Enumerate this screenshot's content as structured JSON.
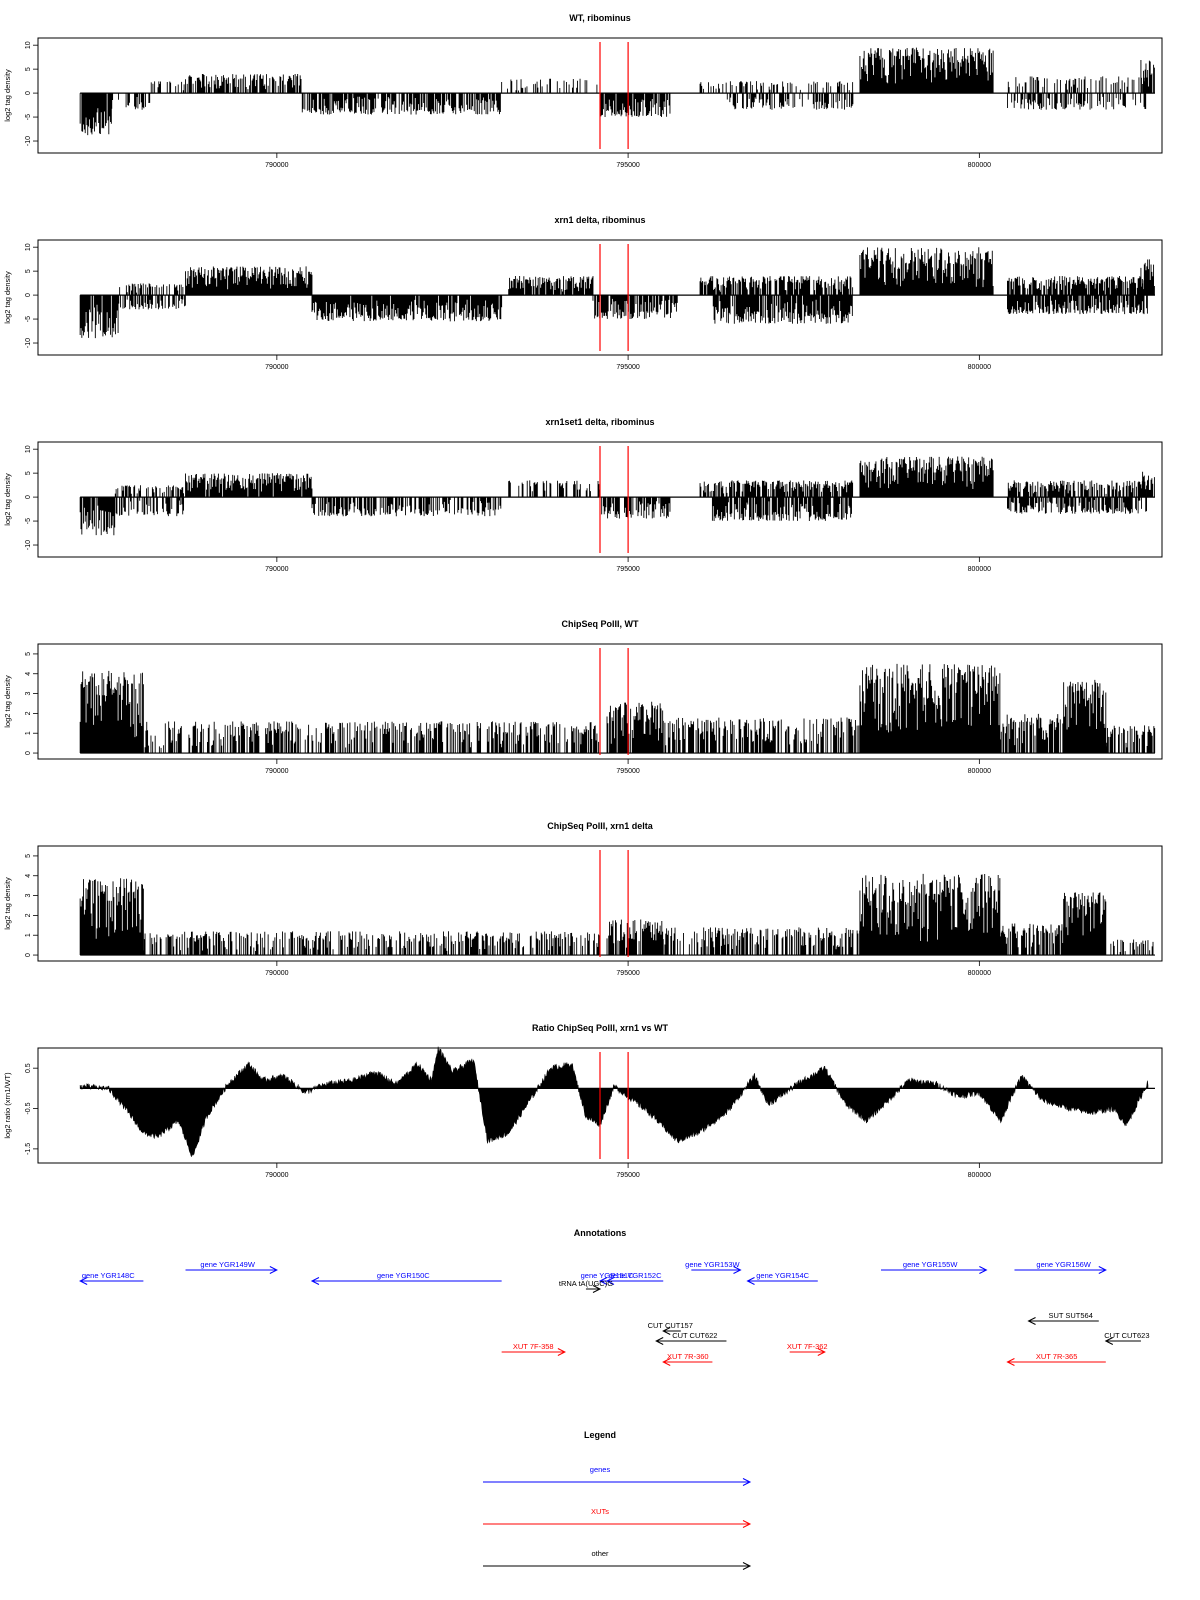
{
  "chart_data": [
    {
      "type": "bar",
      "title": "WT, ribominus",
      "ylabel": "log2 tag density",
      "xticks": [
        790000,
        795000,
        800000
      ],
      "xlim": [
        786600,
        802600
      ],
      "yticks": [
        10,
        5,
        0,
        -5,
        -10
      ],
      "ylim": [
        -12.5,
        11.5
      ],
      "markers": [
        794600,
        795000
      ],
      "segments": [
        {
          "x": [
            787200,
            787650
          ],
          "sign": -1,
          "amp": 9,
          "density": 0.95
        },
        {
          "x": [
            787650,
            788200
          ],
          "sign": -1,
          "amp": 3.5,
          "density": 0.45
        },
        {
          "x": [
            788200,
            788700
          ],
          "sign": 1,
          "amp": 2.5,
          "density": 0.4
        },
        {
          "x": [
            788700,
            790350
          ],
          "sign": 1,
          "amp": 4,
          "density": 0.75
        },
        {
          "x": [
            790350,
            793200
          ],
          "sign": -1,
          "amp": 4.5,
          "density": 0.75
        },
        {
          "x": [
            793200,
            794600
          ],
          "sign": 1,
          "amp": 3,
          "density": 0.3
        },
        {
          "x": [
            794600,
            795600
          ],
          "sign": -1,
          "amp": 5,
          "density": 0.85
        },
        {
          "x": [
            796000,
            798200
          ],
          "sign": 1,
          "amp": 2.5,
          "density": 0.3
        },
        {
          "x": [
            796400,
            798200
          ],
          "sign": -1,
          "amp": 3.5,
          "density": 0.5
        },
        {
          "x": [
            798300,
            800200
          ],
          "sign": 1,
          "amp": 9.5,
          "density": 1.0
        },
        {
          "x": [
            800400,
            802400
          ],
          "sign": 1,
          "amp": 3.5,
          "density": 0.4
        },
        {
          "x": [
            800400,
            802400
          ],
          "sign": -1,
          "amp": 3.5,
          "density": 0.4
        },
        {
          "x": [
            802300,
            802500
          ],
          "sign": 1,
          "amp": 7,
          "density": 0.9
        }
      ]
    },
    {
      "type": "bar",
      "title": "xrn1 delta, ribominus",
      "ylabel": "log2 tag density",
      "xticks": [
        790000,
        795000,
        800000
      ],
      "xlim": [
        786600,
        802600
      ],
      "yticks": [
        10,
        5,
        0,
        -5,
        -10
      ],
      "ylim": [
        -12.5,
        11.5
      ],
      "markers": [
        794600,
        795000
      ],
      "segments": [
        {
          "x": [
            787200,
            787750
          ],
          "sign": -1,
          "amp": 9,
          "density": 0.95
        },
        {
          "x": [
            787750,
            788700
          ],
          "sign": 1,
          "amp": 2.5,
          "density": 0.5
        },
        {
          "x": [
            787750,
            788700
          ],
          "sign": -1,
          "amp": 3,
          "density": 0.5
        },
        {
          "x": [
            788700,
            790500
          ],
          "sign": 1,
          "amp": 6,
          "density": 1.0
        },
        {
          "x": [
            790500,
            793200
          ],
          "sign": -1,
          "amp": 5.5,
          "density": 0.95
        },
        {
          "x": [
            793300,
            794500
          ],
          "sign": 1,
          "amp": 4,
          "density": 0.9
        },
        {
          "x": [
            794500,
            795700
          ],
          "sign": -1,
          "amp": 5,
          "density": 0.9
        },
        {
          "x": [
            796000,
            798200
          ],
          "sign": 1,
          "amp": 4,
          "density": 0.8
        },
        {
          "x": [
            796200,
            798200
          ],
          "sign": -1,
          "amp": 6,
          "density": 0.9
        },
        {
          "x": [
            798300,
            800200
          ],
          "sign": 1,
          "amp": 10,
          "density": 1.0
        },
        {
          "x": [
            800400,
            802400
          ],
          "sign": 1,
          "amp": 4,
          "density": 0.85
        },
        {
          "x": [
            800400,
            802400
          ],
          "sign": -1,
          "amp": 4,
          "density": 0.85
        },
        {
          "x": [
            802300,
            802500
          ],
          "sign": 1,
          "amp": 7.5,
          "density": 0.9
        }
      ]
    },
    {
      "type": "bar",
      "title": "xrn1set1 delta, ribominus",
      "ylabel": "log2 tag density",
      "xticks": [
        790000,
        795000,
        800000
      ],
      "xlim": [
        786600,
        802600
      ],
      "yticks": [
        10,
        5,
        0,
        -5,
        -10
      ],
      "ylim": [
        -12.5,
        11.5
      ],
      "markers": [
        794600,
        795000
      ],
      "segments": [
        {
          "x": [
            787200,
            787700
          ],
          "sign": -1,
          "amp": 8,
          "density": 0.9
        },
        {
          "x": [
            787700,
            788700
          ],
          "sign": 1,
          "amp": 2.5,
          "density": 0.5
        },
        {
          "x": [
            787700,
            788700
          ],
          "sign": -1,
          "amp": 4,
          "density": 0.5
        },
        {
          "x": [
            788700,
            790500
          ],
          "sign": 1,
          "amp": 5,
          "density": 0.95
        },
        {
          "x": [
            790500,
            793200
          ],
          "sign": -1,
          "amp": 4,
          "density": 0.6
        },
        {
          "x": [
            793300,
            794600
          ],
          "sign": 1,
          "amp": 3.5,
          "density": 0.4
        },
        {
          "x": [
            794600,
            795600
          ],
          "sign": -1,
          "amp": 4.5,
          "density": 0.8
        },
        {
          "x": [
            796000,
            798200
          ],
          "sign": 1,
          "amp": 3.5,
          "density": 0.7
        },
        {
          "x": [
            796200,
            798200
          ],
          "sign": -1,
          "amp": 5,
          "density": 0.8
        },
        {
          "x": [
            798300,
            800200
          ],
          "sign": 1,
          "amp": 8.5,
          "density": 1.0
        },
        {
          "x": [
            800400,
            802400
          ],
          "sign": 1,
          "amp": 3.5,
          "density": 0.7
        },
        {
          "x": [
            800400,
            802400
          ],
          "sign": -1,
          "amp": 3.5,
          "density": 0.7
        },
        {
          "x": [
            802300,
            802500
          ],
          "sign": 1,
          "amp": 5.5,
          "density": 0.9
        }
      ]
    },
    {
      "type": "bar",
      "title": "ChipSeq PolII, WT",
      "ylabel": "log2 tag density",
      "xticks": [
        790000,
        795000,
        800000
      ],
      "xlim": [
        786600,
        802600
      ],
      "yticks": [
        5,
        4,
        3,
        2,
        1,
        0
      ],
      "ylim": [
        -0.3,
        5.5
      ],
      "markers": [
        794600,
        795000
      ],
      "segments": [
        {
          "x": [
            787200,
            788100
          ],
          "sign": 1,
          "amp": 4.2,
          "density": 1.0
        },
        {
          "x": [
            788100,
            794600
          ],
          "sign": 1,
          "amp": 1.6,
          "density": 0.6
        },
        {
          "x": [
            794700,
            795500
          ],
          "sign": 1,
          "amp": 2.6,
          "density": 0.95
        },
        {
          "x": [
            795500,
            798300
          ],
          "sign": 1,
          "amp": 1.8,
          "density": 0.65
        },
        {
          "x": [
            798300,
            800300
          ],
          "sign": 1,
          "amp": 4.5,
          "density": 1.0
        },
        {
          "x": [
            800300,
            801200
          ],
          "sign": 1,
          "amp": 2.0,
          "density": 0.7
        },
        {
          "x": [
            801200,
            801800
          ],
          "sign": 1,
          "amp": 3.7,
          "density": 1.0
        },
        {
          "x": [
            801800,
            802500
          ],
          "sign": 1,
          "amp": 1.4,
          "density": 0.6
        }
      ]
    },
    {
      "type": "bar",
      "title": "ChipSeq PolII, xrn1 delta",
      "ylabel": "log2 tag density",
      "xticks": [
        790000,
        795000,
        800000
      ],
      "xlim": [
        786600,
        802600
      ],
      "yticks": [
        5,
        4,
        3,
        2,
        1,
        0
      ],
      "ylim": [
        -0.3,
        5.5
      ],
      "markers": [
        794600,
        795000
      ],
      "segments": [
        {
          "x": [
            787200,
            788100
          ],
          "sign": 1,
          "amp": 3.9,
          "density": 1.0
        },
        {
          "x": [
            788100,
            794600
          ],
          "sign": 1,
          "amp": 1.2,
          "density": 0.55
        },
        {
          "x": [
            794700,
            795500
          ],
          "sign": 1,
          "amp": 1.8,
          "density": 0.9
        },
        {
          "x": [
            795500,
            798300
          ],
          "sign": 1,
          "amp": 1.4,
          "density": 0.6
        },
        {
          "x": [
            798300,
            800300
          ],
          "sign": 1,
          "amp": 4.1,
          "density": 1.0
        },
        {
          "x": [
            800300,
            801200
          ],
          "sign": 1,
          "amp": 1.6,
          "density": 0.7
        },
        {
          "x": [
            801200,
            801800
          ],
          "sign": 1,
          "amp": 3.2,
          "density": 1.0
        },
        {
          "x": [
            801800,
            802500
          ],
          "sign": 1,
          "amp": 0.8,
          "density": 0.5
        }
      ]
    },
    {
      "type": "area",
      "title": "Ratio ChipSeq PolII, xrn1 vs WT",
      "ylabel": "log2 ratio (xrn1/WT)",
      "xticks": [
        790000,
        795000,
        800000
      ],
      "xlim": [
        786600,
        802600
      ],
      "yticks": [
        0.5,
        -0.5,
        -1.5
      ],
      "ylim": [
        -1.85,
        1.0
      ],
      "markers": [
        794600,
        795000
      ],
      "baseline": 0.0,
      "profile": [
        [
          787200,
          0.05
        ],
        [
          787600,
          0.0
        ],
        [
          787800,
          -0.4
        ],
        [
          788100,
          -1.1
        ],
        [
          788300,
          -1.2
        ],
        [
          788600,
          -0.8
        ],
        [
          788800,
          -1.7
        ],
        [
          789000,
          -0.7
        ],
        [
          789300,
          0.1
        ],
        [
          789600,
          0.6
        ],
        [
          789800,
          0.2
        ],
        [
          790100,
          0.3
        ],
        [
          790400,
          -0.1
        ],
        [
          790700,
          0.1
        ],
        [
          791100,
          0.2
        ],
        [
          791400,
          0.4
        ],
        [
          791700,
          0.1
        ],
        [
          792000,
          0.6
        ],
        [
          792200,
          0.2
        ],
        [
          792300,
          1.0
        ],
        [
          792500,
          0.4
        ],
        [
          792800,
          0.7
        ],
        [
          793000,
          -1.3
        ],
        [
          793300,
          -1.1
        ],
        [
          793600,
          -0.3
        ],
        [
          793900,
          0.5
        ],
        [
          794200,
          0.6
        ],
        [
          794400,
          -0.7
        ],
        [
          794600,
          -0.9
        ],
        [
          794800,
          0.05
        ],
        [
          795000,
          -0.2
        ],
        [
          795300,
          -0.6
        ],
        [
          795700,
          -1.3
        ],
        [
          796000,
          -1.1
        ],
        [
          796400,
          -0.6
        ],
        [
          796800,
          0.3
        ],
        [
          797000,
          -0.4
        ],
        [
          797400,
          0.1
        ],
        [
          797800,
          0.5
        ],
        [
          798100,
          -0.4
        ],
        [
          798400,
          -0.8
        ],
        [
          798700,
          -0.3
        ],
        [
          799000,
          0.2
        ],
        [
          799400,
          0.1
        ],
        [
          799700,
          -0.2
        ],
        [
          800000,
          -0.1
        ],
        [
          800300,
          -0.8
        ],
        [
          800600,
          0.3
        ],
        [
          800900,
          -0.3
        ],
        [
          801300,
          -0.5
        ],
        [
          801600,
          -0.6
        ],
        [
          801900,
          -0.5
        ],
        [
          802100,
          -0.9
        ],
        [
          802400,
          0.15
        ]
      ]
    }
  ],
  "annotations": {
    "title": "Annotations",
    "xlim": [
      786600,
      802600
    ],
    "features": [
      {
        "label": "gene YGR148C",
        "start": 787200,
        "end": 788100,
        "dir": "left",
        "color": "#0000ff",
        "row": 2,
        "label_x": 787600
      },
      {
        "label": "gene YGR149W",
        "start": 788700,
        "end": 790000,
        "dir": "right",
        "color": "#0000ff",
        "row": 1,
        "label_x": 789300
      },
      {
        "label": "gene YGR150C",
        "start": 790500,
        "end": 793200,
        "dir": "left",
        "color": "#0000ff",
        "row": 2,
        "label_x": 791800
      },
      {
        "label": "gene YGR151C",
        "start": 794600,
        "end": 794900,
        "dir": "left",
        "color": "#0000ff",
        "row": 2,
        "label_x": 794700
      },
      {
        "label": "gene YGR152C",
        "start": 794700,
        "end": 795500,
        "dir": "left",
        "color": "#0000ff",
        "row": 2,
        "label_x": 795100
      },
      {
        "label": "gene YGR153W",
        "start": 795900,
        "end": 796600,
        "dir": "right",
        "color": "#0000ff",
        "row": 1,
        "label_x": 796200
      },
      {
        "label": "gene YGR154C",
        "start": 796700,
        "end": 797700,
        "dir": "left",
        "color": "#0000ff",
        "row": 2,
        "label_x": 797200
      },
      {
        "label": "gene YGR155W",
        "start": 798600,
        "end": 800100,
        "dir": "right",
        "color": "#0000ff",
        "row": 1,
        "label_x": 799300
      },
      {
        "label": "gene YGR156W",
        "start": 800500,
        "end": 801800,
        "dir": "right",
        "color": "#0000ff",
        "row": 1,
        "label_x": 801200
      },
      {
        "label": "tRNA tA(UGC)G",
        "start": 794400,
        "end": 794600,
        "dir": "right",
        "color": "#000000",
        "row": 3,
        "label_x": 794400
      },
      {
        "label": "CUT CUT157",
        "start": 795500,
        "end": 795750,
        "dir": "left",
        "color": "#000000",
        "row": 5,
        "label_x": 795600
      },
      {
        "label": "CUT CUT622",
        "start": 795400,
        "end": 796400,
        "dir": "left",
        "color": "#000000",
        "row": 6,
        "label_x": 795950
      },
      {
        "label": "SUT SUT564",
        "start": 800700,
        "end": 801700,
        "dir": "left",
        "color": "#000000",
        "row": 4,
        "label_x": 801300
      },
      {
        "label": "CUT CUT623",
        "start": 801800,
        "end": 802300,
        "dir": "left",
        "color": "#000000",
        "row": 6,
        "label_x": 802100
      },
      {
        "label": "XUT 7F-358",
        "start": 793200,
        "end": 794100,
        "dir": "right",
        "color": "#ff0000",
        "row": 7,
        "label_x": 793650
      },
      {
        "label": "XUT 7R-360",
        "start": 795500,
        "end": 796200,
        "dir": "left",
        "color": "#ff0000",
        "row": 8,
        "label_x": 795850
      },
      {
        "label": "XUT 7F-362",
        "start": 797300,
        "end": 797800,
        "dir": "right",
        "color": "#ff0000",
        "row": 7,
        "label_x": 797550
      },
      {
        "label": "XUT 7R-365",
        "start": 800400,
        "end": 801800,
        "dir": "left",
        "color": "#ff0000",
        "row": 8,
        "label_x": 801100
      }
    ]
  },
  "legend": {
    "title": "Legend",
    "items": [
      {
        "label": "genes",
        "color": "#0000ff"
      },
      {
        "label": "XUTs",
        "color": "#ff0000"
      },
      {
        "label": "other",
        "color": "#000000"
      }
    ]
  }
}
